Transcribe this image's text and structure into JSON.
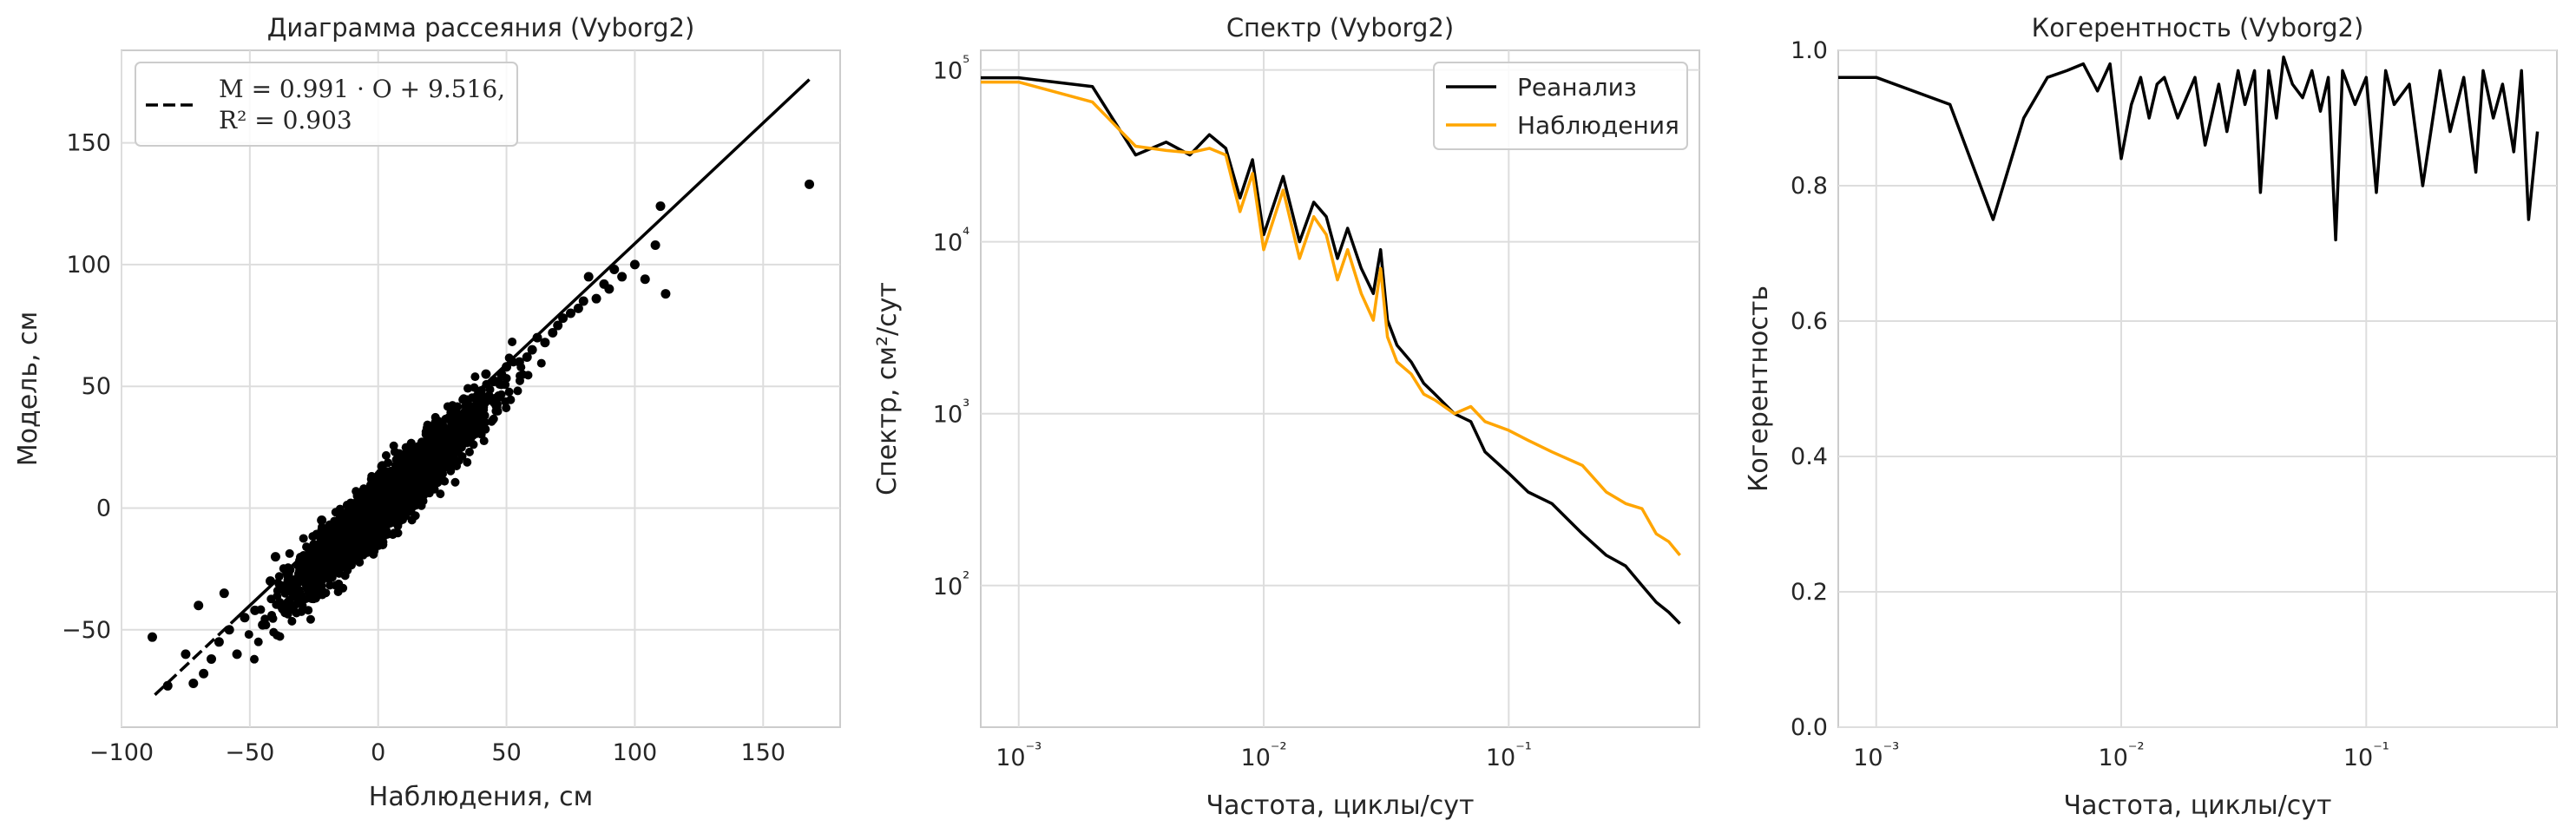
{
  "chart_data": [
    {
      "type": "scatter",
      "title": "Диаграмма рассеяния (Vyborg2)",
      "xlabel": "Наблюдения, см",
      "ylabel": "Модель, см",
      "xlim": [
        -100,
        180
      ],
      "ylim": [
        -90,
        188
      ],
      "xticks": [
        -100,
        -50,
        0,
        50,
        100,
        150
      ],
      "xtick_labels": [
        "−100",
        "−50",
        "0",
        "50",
        "100",
        "150"
      ],
      "yticks": [
        -50,
        0,
        50,
        100,
        150
      ],
      "ytick_labels": [
        "−50",
        "0",
        "50",
        "100",
        "150"
      ],
      "grid": true,
      "point_color": "#000000",
      "fit": {
        "slope": 0.991,
        "intercept": 9.516,
        "r2": 0.903,
        "x_range": [
          -87,
          168
        ],
        "style": "dashed/solid",
        "color": "#000000"
      },
      "legend": {
        "line1": "M = 0.991 · O + 9.516,",
        "line2": "R² = 0.903",
        "location": "upper-left"
      },
      "series": [
        {
          "x": [
            -88,
            -82,
            -75,
            -72,
            -68,
            -65,
            -62,
            -58,
            -55,
            -52,
            -48,
            -45,
            -42,
            -38,
            -35,
            -30,
            -28,
            -25,
            -20,
            -18,
            -15,
            -10,
            -8,
            -5,
            0,
            3,
            5,
            8,
            10,
            15,
            18,
            20,
            25,
            28,
            30,
            35,
            38,
            40,
            45,
            48,
            50,
            55,
            58,
            60,
            65,
            68,
            70,
            75,
            78,
            80,
            85,
            88,
            90,
            95,
            100,
            104,
            108,
            112,
            110,
            168,
            -70,
            -60,
            -40,
            -22,
            12,
            42,
            62,
            72,
            82,
            92
          ],
          "y": [
            -53,
            -73,
            -60,
            -72,
            -68,
            -62,
            -55,
            -50,
            -60,
            -45,
            -42,
            -48,
            -30,
            -32,
            -28,
            -25,
            -20,
            -15,
            -12,
            -10,
            -5,
            0,
            5,
            2,
            8,
            10,
            15,
            12,
            20,
            22,
            25,
            28,
            30,
            32,
            38,
            40,
            42,
            48,
            52,
            55,
            58,
            60,
            62,
            65,
            68,
            72,
            75,
            80,
            82,
            85,
            86,
            92,
            90,
            95,
            100,
            94,
            108,
            88,
            124,
            133,
            -40,
            -35,
            -20,
            -5,
            25,
            55,
            70,
            78,
            95,
            98
          ]
        }
      ]
    },
    {
      "type": "line",
      "title": "Спектр (Vyborg2)",
      "xlabel": "Частота, циклы/сут",
      "ylabel": "Спектр, см²/сут",
      "xscale": "log",
      "yscale": "log",
      "xlim": [
        0.0007,
        0.6
      ],
      "ylim": [
        15,
        130000
      ],
      "xtick_labels": [
        "10⁻³",
        "10⁻²",
        "10⁻¹"
      ],
      "ytick_labels": [
        "10²",
        "10³",
        "10⁴",
        "10⁵"
      ],
      "grid": true,
      "legend": {
        "location": "upper-right"
      },
      "x": [
        0.0007,
        0.001,
        0.002,
        0.003,
        0.004,
        0.005,
        0.006,
        0.007,
        0.008,
        0.009,
        0.01,
        0.012,
        0.014,
        0.016,
        0.018,
        0.02,
        0.022,
        0.025,
        0.028,
        0.03,
        0.032,
        0.035,
        0.04,
        0.045,
        0.05,
        0.06,
        0.07,
        0.08,
        0.1,
        0.12,
        0.15,
        0.2,
        0.25,
        0.3,
        0.35,
        0.4,
        0.45,
        0.5
      ],
      "series": [
        {
          "name": "Реанализ",
          "color": "#000000",
          "values": [
            90000,
            90000,
            80000,
            32000,
            38000,
            32000,
            42000,
            35000,
            18000,
            30000,
            11000,
            24000,
            10000,
            17000,
            14000,
            8000,
            12000,
            7000,
            5000,
            9000,
            3500,
            2500,
            2000,
            1500,
            1300,
            1000,
            900,
            600,
            450,
            350,
            300,
            200,
            150,
            130,
            100,
            80,
            70,
            60
          ]
        },
        {
          "name": "Наблюдения",
          "color": "#FFA500",
          "values": [
            85000,
            85000,
            65000,
            36000,
            34000,
            33000,
            35000,
            32000,
            15000,
            25000,
            9000,
            20000,
            8000,
            14000,
            11000,
            6000,
            9000,
            5000,
            3500,
            7000,
            2800,
            2000,
            1700,
            1300,
            1200,
            1000,
            1100,
            900,
            800,
            700,
            600,
            500,
            350,
            300,
            280,
            200,
            180,
            150
          ]
        }
      ]
    },
    {
      "type": "line",
      "title": "Когерентность (Vyborg2)",
      "xlabel": "Частота, циклы/сут",
      "ylabel": "Когерентность",
      "xscale": "log",
      "xlim": [
        0.0007,
        0.6
      ],
      "ylim": [
        0,
        1
      ],
      "xtick_labels": [
        "10⁻³",
        "10⁻²",
        "10⁻¹"
      ],
      "ytick_labels": [
        "0.0",
        "0.2",
        "0.4",
        "0.6",
        "0.8",
        "1.0"
      ],
      "grid": true,
      "series": [
        {
          "color": "#000000",
          "x": [
            0.0007,
            0.001,
            0.002,
            0.003,
            0.004,
            0.005,
            0.006,
            0.007,
            0.008,
            0.009,
            0.01,
            0.011,
            0.012,
            0.013,
            0.014,
            0.015,
            0.017,
            0.02,
            0.022,
            0.025,
            0.027,
            0.03,
            0.032,
            0.035,
            0.037,
            0.04,
            0.043,
            0.046,
            0.05,
            0.055,
            0.06,
            0.065,
            0.07,
            0.075,
            0.08,
            0.09,
            0.1,
            0.11,
            0.12,
            0.13,
            0.15,
            0.17,
            0.2,
            0.22,
            0.25,
            0.28,
            0.3,
            0.33,
            0.36,
            0.4,
            0.43,
            0.46,
            0.5
          ],
          "y": [
            0.96,
            0.96,
            0.92,
            0.75,
            0.9,
            0.96,
            0.97,
            0.98,
            0.94,
            0.98,
            0.84,
            0.92,
            0.96,
            0.9,
            0.95,
            0.96,
            0.9,
            0.96,
            0.86,
            0.95,
            0.88,
            0.97,
            0.92,
            0.97,
            0.79,
            0.97,
            0.9,
            0.99,
            0.95,
            0.93,
            0.97,
            0.91,
            0.96,
            0.72,
            0.97,
            0.92,
            0.96,
            0.79,
            0.97,
            0.92,
            0.95,
            0.8,
            0.97,
            0.88,
            0.96,
            0.82,
            0.97,
            0.9,
            0.95,
            0.85,
            0.97,
            0.75,
            0.88
          ]
        }
      ]
    }
  ]
}
